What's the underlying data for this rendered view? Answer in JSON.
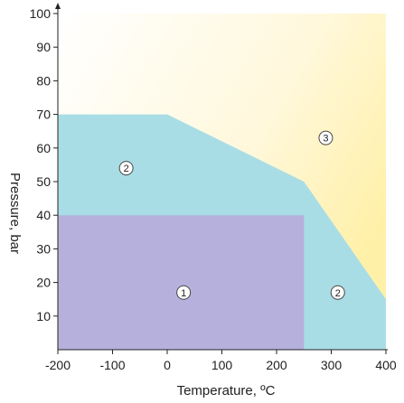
{
  "chart_data": {
    "type": "area",
    "title": "",
    "xlabel": "Temperature, ºC",
    "ylabel": "Pressure, bar",
    "xlim": [
      -200,
      400
    ],
    "ylim": [
      0,
      100
    ],
    "x_ticks": [
      -200,
      -100,
      0,
      100,
      200,
      300,
      400
    ],
    "y_ticks": [
      10,
      20,
      30,
      40,
      50,
      60,
      70,
      80,
      90,
      100
    ],
    "x_tick_labels": [
      "-200",
      "-100",
      "0",
      "100",
      "200",
      "300",
      "400"
    ],
    "y_tick_labels": [
      "10",
      "20",
      "30",
      "40",
      "50",
      "60",
      "70",
      "80",
      "90",
      "100"
    ],
    "grid": false,
    "regions": [
      {
        "label": "3",
        "color": "#fff6cc",
        "polygon": [
          [
            -200,
            0
          ],
          [
            400,
            0
          ],
          [
            400,
            100
          ],
          [
            -200,
            100
          ]
        ],
        "label_at": [
          -110,
          63
        ]
      },
      {
        "label": "2",
        "color": "#a9dde6",
        "polygon": [
          [
            -200,
            0
          ],
          [
            400,
            0
          ],
          [
            400,
            15
          ],
          [
            250,
            50
          ],
          [
            0,
            70
          ],
          [
            -200,
            70
          ]
        ],
        "label_at": [
          -75,
          54
        ]
      },
      {
        "label": "1",
        "color": "#b6b1dc",
        "polygon": [
          [
            -200,
            0
          ],
          [
            250,
            0
          ],
          [
            250,
            40
          ],
          [
            -200,
            40
          ]
        ],
        "label_at": [
          30,
          17
        ]
      }
    ],
    "extra_labels": [
      {
        "label": "2",
        "at": [
          312,
          17
        ]
      },
      {
        "label": "3",
        "at": [
          290,
          63
        ]
      }
    ]
  }
}
